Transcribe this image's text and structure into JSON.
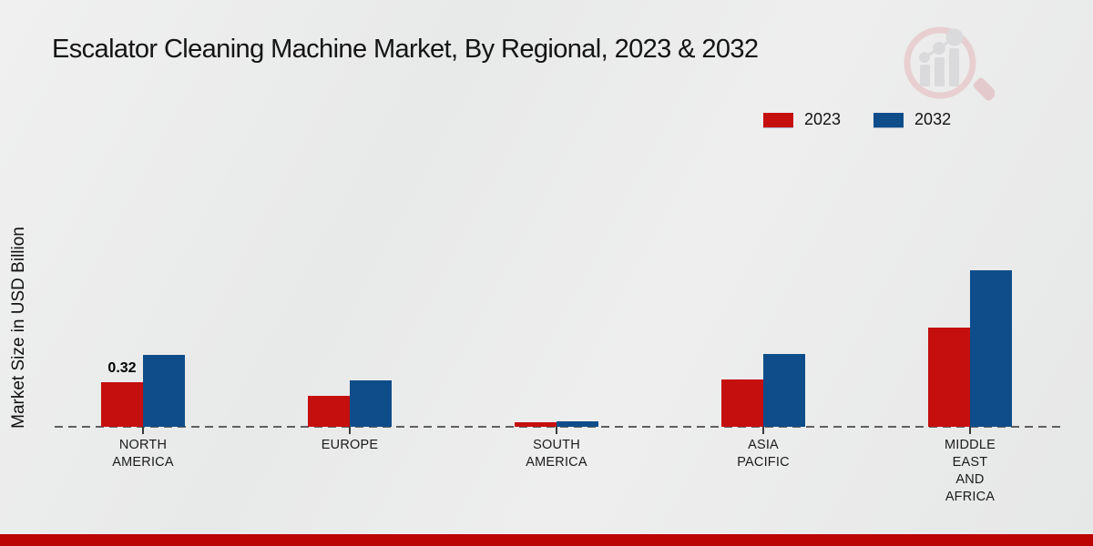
{
  "title": "Escalator Cleaning Machine Market, By Regional, 2023 & 2032",
  "y_axis_label": "Market Size in USD Billion",
  "legend": [
    {
      "label": "2023",
      "color": "#c50f0f"
    },
    {
      "label": "2032",
      "color": "#0e4d8a"
    }
  ],
  "footer_bar_color": "#bd0404",
  "watermark_icon": "magnifier-bar-chart-logo",
  "chart_data": {
    "type": "bar",
    "title": "Escalator Cleaning Machine Market, By Regional, 2023 & 2032",
    "xlabel": "",
    "ylabel": "Market Size in USD Billion",
    "categories": [
      "NORTH AMERICA",
      "EUROPE",
      "SOUTH AMERICA",
      "ASIA PACIFIC",
      "MIDDLE EAST AND AFRICA"
    ],
    "category_label_lines": [
      [
        "NORTH",
        "AMERICA"
      ],
      [
        "EUROPE"
      ],
      [
        "SOUTH",
        "AMERICA"
      ],
      [
        "ASIA",
        "PACIFIC"
      ],
      [
        "MIDDLE",
        "EAST",
        "AND",
        "AFRICA"
      ]
    ],
    "series": [
      {
        "name": "2023",
        "color": "#c50f0f",
        "values": [
          0.32,
          0.22,
          0.03,
          0.34,
          0.71
        ]
      },
      {
        "name": "2032",
        "color": "#0e4d8a",
        "values": [
          0.51,
          0.33,
          0.04,
          0.52,
          1.12
        ]
      }
    ],
    "data_labels": [
      {
        "series": "2023",
        "category": "NORTH AMERICA",
        "text": "0.32"
      }
    ],
    "ylim": [
      0,
      1.25
    ],
    "grid": false,
    "legend_position": "top-right",
    "baseline_style": "dashed",
    "units": "USD Billion"
  }
}
